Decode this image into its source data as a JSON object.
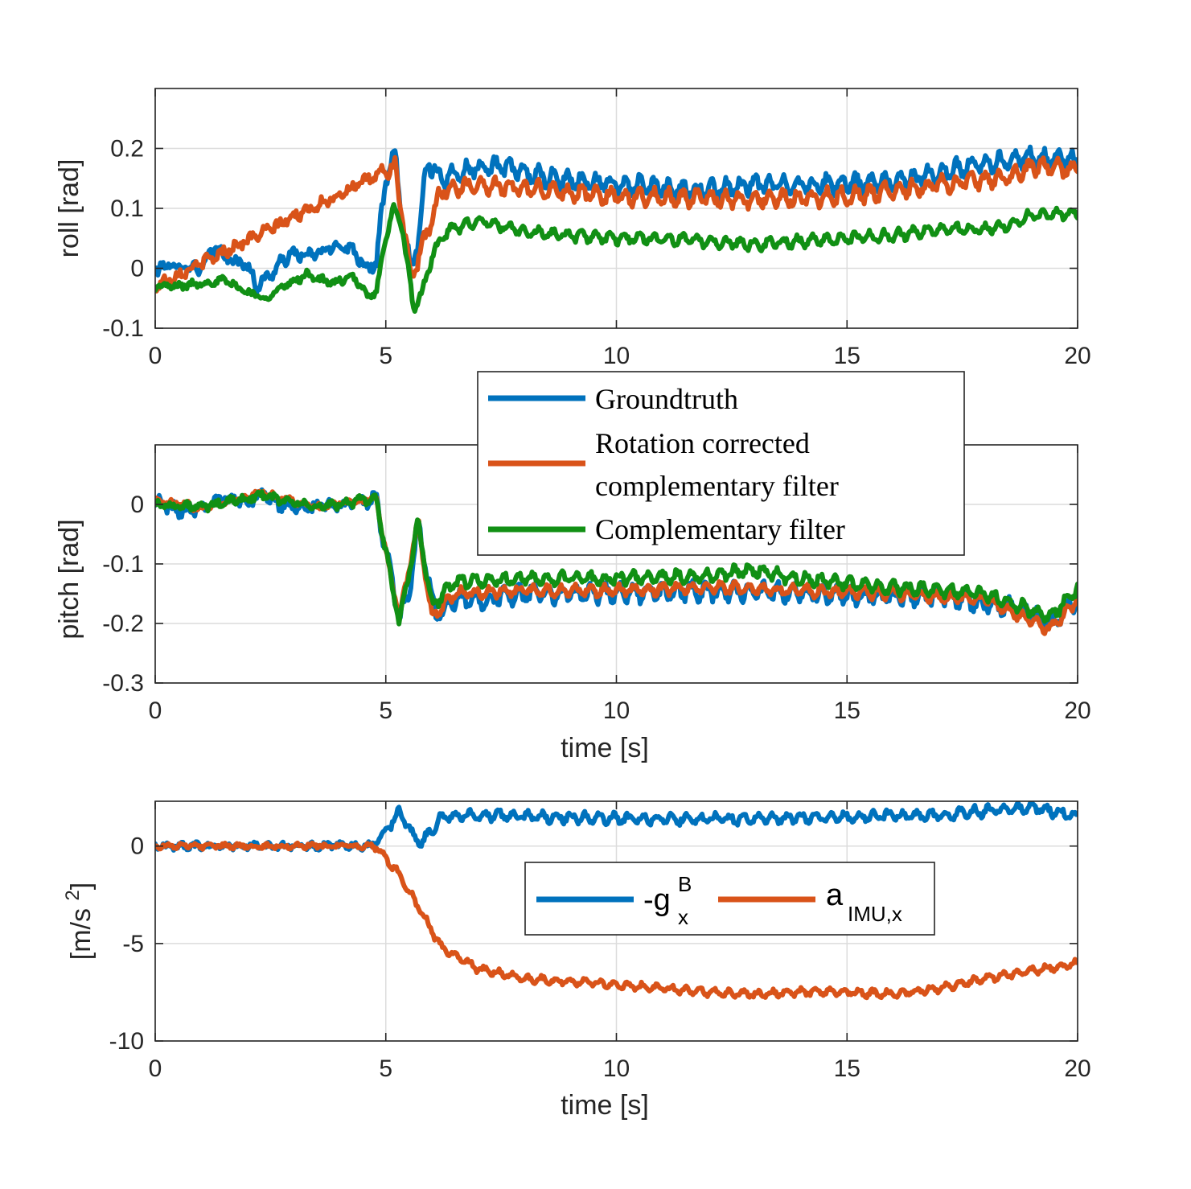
{
  "colors": {
    "groundtruth": "#0072BD",
    "corrected": "#D95319",
    "complementary": "#119014",
    "neg_g": "#0072BD",
    "a_imu": "#D95319"
  },
  "chart_data": [
    {
      "type": "line",
      "panel": "roll",
      "xlabel": "",
      "ylabel": "roll [rad]",
      "xlim": [
        0,
        20
      ],
      "ylim": [
        -0.1,
        0.3
      ],
      "xticks": [
        0,
        5,
        10,
        15,
        20
      ],
      "xtick_labels": [
        "0",
        "5",
        "10",
        "15",
        "20"
      ],
      "yticks": [
        -0.1,
        0,
        0.1,
        0.2
      ],
      "ytick_labels": [
        "-0.1",
        "0",
        "0.1",
        "0.2"
      ],
      "grid": true,
      "series": [
        {
          "name": "Groundtruth",
          "color_key": "groundtruth",
          "keypoints": [
            [
              0,
              0
            ],
            [
              0.5,
              0.005
            ],
            [
              1.0,
              0.0
            ],
            [
              1.3,
              0.035
            ],
            [
              1.6,
              0.015
            ],
            [
              2.0,
              0.005
            ],
            [
              2.2,
              -0.03
            ],
            [
              2.5,
              -0.01
            ],
            [
              2.8,
              0.015
            ],
            [
              3.0,
              0.025
            ],
            [
              3.3,
              0.02
            ],
            [
              3.7,
              0.03
            ],
            [
              4.0,
              0.04
            ],
            [
              4.3,
              0.03
            ],
            [
              4.6,
              0.0
            ],
            [
              4.8,
              0.01
            ],
            [
              5.0,
              0.15
            ],
            [
              5.2,
              0.19
            ],
            [
              5.4,
              0.05
            ],
            [
              5.55,
              0.0
            ],
            [
              5.7,
              0.05
            ],
            [
              5.9,
              0.18
            ],
            [
              6.2,
              0.15
            ],
            [
              7.0,
              0.17
            ],
            [
              7.5,
              0.17
            ],
            [
              8.5,
              0.15
            ],
            [
              10,
              0.14
            ],
            [
              12,
              0.13
            ],
            [
              13,
              0.14
            ],
            [
              14,
              0.14
            ],
            [
              15,
              0.14
            ],
            [
              16,
              0.145
            ],
            [
              17,
              0.16
            ],
            [
              18,
              0.175
            ],
            [
              19,
              0.185
            ],
            [
              20,
              0.18
            ]
          ],
          "jitter": 0.02
        },
        {
          "name": "Rotation corrected complementary filter",
          "color_key": "corrected",
          "keypoints": [
            [
              0,
              -0.03
            ],
            [
              5.2,
              0.17
            ],
            [
              5.55,
              -0.02
            ],
            [
              6.2,
              0.13
            ],
            [
              7.0,
              0.14
            ],
            [
              10,
              0.12
            ],
            [
              13,
              0.115
            ],
            [
              15,
              0.12
            ],
            [
              17,
              0.14
            ],
            [
              18.5,
              0.15
            ],
            [
              19,
              0.17
            ],
            [
              20,
              0.165
            ]
          ],
          "jitter": 0.018
        },
        {
          "name": "Complementary filter",
          "color_key": "complementary",
          "keypoints": [
            [
              0,
              -0.03
            ],
            [
              0.5,
              -0.03
            ],
            [
              1.0,
              -0.025
            ],
            [
              1.5,
              -0.02
            ],
            [
              2.0,
              -0.04
            ],
            [
              2.4,
              -0.05
            ],
            [
              2.8,
              -0.03
            ],
            [
              3.3,
              -0.01
            ],
            [
              3.8,
              -0.025
            ],
            [
              4.3,
              -0.015
            ],
            [
              4.6,
              -0.045
            ],
            [
              4.8,
              -0.04
            ],
            [
              5.0,
              0.05
            ],
            [
              5.15,
              0.1
            ],
            [
              5.35,
              0.07
            ],
            [
              5.6,
              -0.065
            ],
            [
              5.8,
              -0.04
            ],
            [
              6.0,
              0.02
            ],
            [
              6.3,
              0.06
            ],
            [
              7.0,
              0.08
            ],
            [
              8.0,
              0.06
            ],
            [
              9.0,
              0.055
            ],
            [
              10,
              0.05
            ],
            [
              11,
              0.05
            ],
            [
              12,
              0.045
            ],
            [
              13,
              0.04
            ],
            [
              14,
              0.045
            ],
            [
              15,
              0.05
            ],
            [
              16,
              0.055
            ],
            [
              17,
              0.065
            ],
            [
              18,
              0.065
            ],
            [
              18.5,
              0.07
            ],
            [
              19,
              0.09
            ],
            [
              20,
              0.09
            ]
          ],
          "jitter": 0.012
        }
      ]
    },
    {
      "type": "line",
      "panel": "pitch",
      "xlabel": "time [s]",
      "ylabel": "pitch [rad]",
      "xlim": [
        0,
        20
      ],
      "ylim": [
        -0.3,
        0.1
      ],
      "xticks": [
        0,
        5,
        10,
        15,
        20
      ],
      "xtick_labels": [
        "0",
        "5",
        "10",
        "15",
        "20"
      ],
      "yticks": [
        -0.3,
        -0.2,
        -0.1,
        0
      ],
      "ytick_labels": [
        "-0.3",
        "-0.2",
        "-0.1",
        "0"
      ],
      "grid": true,
      "series": [
        {
          "name": "Groundtruth",
          "color_key": "groundtruth",
          "keypoints": [
            [
              0,
              0.005
            ],
            [
              0.5,
              -0.01
            ],
            [
              1,
              -0.005
            ],
            [
              1.5,
              0.01
            ],
            [
              2,
              0.005
            ],
            [
              2.3,
              0.02
            ],
            [
              2.7,
              0.0
            ],
            [
              3.5,
              -0.005
            ],
            [
              4,
              0.0
            ],
            [
              4.5,
              0.005
            ],
            [
              4.8,
              0.01
            ],
            [
              5.0,
              -0.08
            ],
            [
              5.3,
              -0.19
            ],
            [
              5.5,
              -0.15
            ],
            [
              5.7,
              -0.03
            ],
            [
              5.9,
              -0.12
            ],
            [
              6.1,
              -0.19
            ],
            [
              6.5,
              -0.16
            ],
            [
              7,
              -0.16
            ],
            [
              8,
              -0.15
            ],
            [
              10,
              -0.15
            ],
            [
              12,
              -0.145
            ],
            [
              14,
              -0.15
            ],
            [
              16,
              -0.155
            ],
            [
              17,
              -0.155
            ],
            [
              18,
              -0.165
            ],
            [
              19,
              -0.18
            ],
            [
              19.4,
              -0.2
            ],
            [
              20,
              -0.16
            ]
          ],
          "jitter": 0.02
        },
        {
          "name": "Rotation corrected complementary filter",
          "color_key": "corrected",
          "keypoints": [
            [
              0,
              0.005
            ],
            [
              1,
              -0.005
            ],
            [
              2.3,
              0.02
            ],
            [
              3.5,
              -0.005
            ],
            [
              4.8,
              0.01
            ],
            [
              5.0,
              -0.08
            ],
            [
              5.3,
              -0.19
            ],
            [
              5.7,
              -0.03
            ],
            [
              6.0,
              -0.19
            ],
            [
              6.5,
              -0.15
            ],
            [
              8,
              -0.145
            ],
            [
              10,
              -0.145
            ],
            [
              12,
              -0.14
            ],
            [
              14,
              -0.145
            ],
            [
              16,
              -0.15
            ],
            [
              18,
              -0.16
            ],
            [
              19.4,
              -0.21
            ],
            [
              20,
              -0.16
            ]
          ],
          "jitter": 0.012
        },
        {
          "name": "Complementary filter",
          "color_key": "complementary",
          "keypoints": [
            [
              0,
              0.0
            ],
            [
              1,
              -0.005
            ],
            [
              2.3,
              0.015
            ],
            [
              3.5,
              -0.005
            ],
            [
              4.8,
              0.01
            ],
            [
              5.0,
              -0.08
            ],
            [
              5.3,
              -0.2
            ],
            [
              5.7,
              -0.03
            ],
            [
              6.0,
              -0.17
            ],
            [
              6.5,
              -0.13
            ],
            [
              8,
              -0.125
            ],
            [
              10,
              -0.125
            ],
            [
              12,
              -0.12
            ],
            [
              13,
              -0.11
            ],
            [
              14,
              -0.125
            ],
            [
              16,
              -0.14
            ],
            [
              18,
              -0.15
            ],
            [
              19.4,
              -0.19
            ],
            [
              20,
              -0.14
            ]
          ],
          "jitter": 0.014
        }
      ],
      "legend": {
        "placement": "top-right-of-panel, overlapping roll axis",
        "entries": [
          {
            "line1": "Groundtruth",
            "line2": "",
            "color_key": "groundtruth"
          },
          {
            "line1": "Rotation corrected",
            "line2": "complementary filter",
            "color_key": "corrected"
          },
          {
            "line1": "Complementary filter",
            "line2": "",
            "color_key": "complementary"
          }
        ]
      }
    },
    {
      "type": "line",
      "panel": "acceleration",
      "xlabel": "time [s]",
      "ylabel": "[m/s ²]",
      "ylabel_parts": {
        "main": "[m/s ",
        "sup": "2",
        "close": "]"
      },
      "xlim": [
        0,
        20
      ],
      "ylim": [
        -10,
        2.3
      ],
      "xticks": [
        0,
        5,
        10,
        15,
        20
      ],
      "xtick_labels": [
        "0",
        "5",
        "10",
        "15",
        "20"
      ],
      "yticks": [
        -10,
        -5,
        0
      ],
      "ytick_labels": [
        "-10",
        "-5",
        "0"
      ],
      "grid": true,
      "series": [
        {
          "name": "-g_x^B",
          "color_key": "neg_g",
          "keypoints": [
            [
              0,
              0
            ],
            [
              4.7,
              0
            ],
            [
              5.0,
              0.8
            ],
            [
              5.3,
              1.8
            ],
            [
              5.6,
              0.5
            ],
            [
              5.8,
              0.2
            ],
            [
              6.2,
              1.5
            ],
            [
              7,
              1.6
            ],
            [
              10,
              1.4
            ],
            [
              13,
              1.4
            ],
            [
              15,
              1.5
            ],
            [
              17,
              1.6
            ],
            [
              18,
              1.8
            ],
            [
              19,
              2.0
            ],
            [
              20,
              1.5
            ]
          ],
          "jitter": 0.35
        },
        {
          "name": "a_IMU,x",
          "color_key": "a_imu",
          "keypoints": [
            [
              0,
              0
            ],
            [
              4.7,
              0
            ],
            [
              4.9,
              -0.3
            ],
            [
              5.3,
              -1.5
            ],
            [
              5.8,
              -3.5
            ],
            [
              6.2,
              -5.2
            ],
            [
              7,
              -6.3
            ],
            [
              8,
              -6.8
            ],
            [
              10,
              -7.1
            ],
            [
              11,
              -7.3
            ],
            [
              12,
              -7.5
            ],
            [
              13,
              -7.6
            ],
            [
              14,
              -7.5
            ],
            [
              15,
              -7.5
            ],
            [
              16,
              -7.6
            ],
            [
              17,
              -7.3
            ],
            [
              18,
              -6.8
            ],
            [
              19,
              -6.4
            ],
            [
              20,
              -6.0
            ]
          ],
          "jitter": 0.25
        }
      ],
      "legend": {
        "placement": "center-right",
        "entries": [
          {
            "base": "-g",
            "sup": "B",
            "sub": "x",
            "color_key": "neg_g"
          },
          {
            "base": "a",
            "sup": "",
            "sub": "IMU,x",
            "color_key": "a_imu"
          }
        ]
      }
    }
  ]
}
